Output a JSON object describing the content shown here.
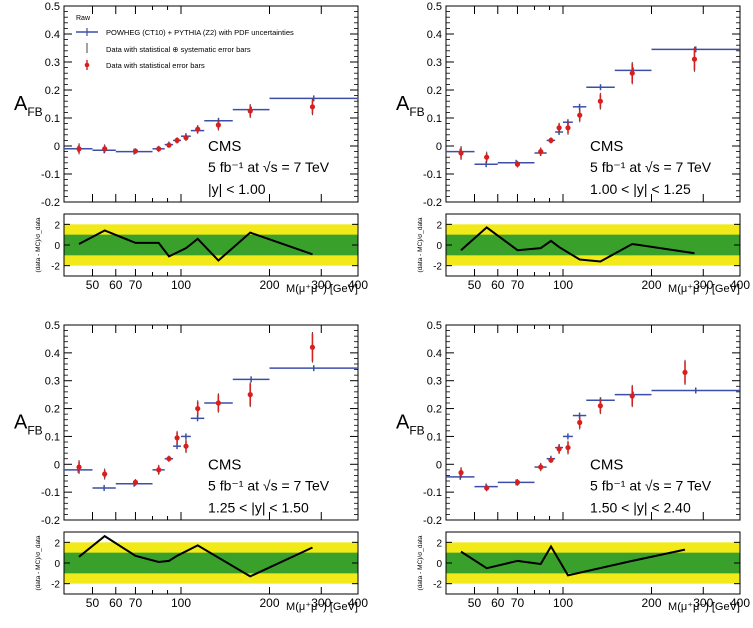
{
  "colors": {
    "mc": "#3b4fa8",
    "data": "#d62020",
    "band_inner": "#3aa02c",
    "band_outer": "#f2ea18",
    "ratio_line": "#000000"
  },
  "legend": {
    "title": "Raw",
    "mc": "POWHEG (CT10) + PYTHIA (Z2) with PDF uncertainties",
    "data_syst": "Data with statistical ⊕ systematic error bars",
    "data_stat": "Data with statistical error bars"
  },
  "chart_data": [
    {
      "type": "scatter",
      "panel": "top-left",
      "ylabel": "A",
      "ylabel_sub": "FB",
      "xlabel": "M(μ⁺μ⁻) [GeV]",
      "ratio_ylabel": "(data - MC)/σ_data",
      "xscale": "log",
      "xlim": [
        40,
        400
      ],
      "ylim": [
        -0.2,
        0.5
      ],
      "ratio_ylim": [
        -3,
        3
      ],
      "xticks": [
        50,
        60,
        70,
        100,
        200,
        300,
        400
      ],
      "yticks": [
        -0.2,
        -0.1,
        0,
        0.1,
        0.2,
        0.3,
        0.4,
        0.5
      ],
      "ratio_yticks": [
        -2,
        0,
        2
      ],
      "annotation": {
        "experiment": "CMS",
        "lumi": "5 fb⁻¹ at √s = 7 TeV",
        "cut": "|y| < 1.00"
      },
      "show_legend": true,
      "mc": [
        {
          "lo": 40,
          "hi": 50,
          "y": -0.01
        },
        {
          "lo": 50,
          "hi": 60,
          "y": -0.015
        },
        {
          "lo": 60,
          "hi": 80,
          "y": -0.02
        },
        {
          "lo": 80,
          "hi": 88,
          "y": -0.01
        },
        {
          "lo": 88,
          "hi": 94,
          "y": 0.005
        },
        {
          "lo": 94,
          "hi": 100,
          "y": 0.02
        },
        {
          "lo": 100,
          "hi": 108,
          "y": 0.035
        },
        {
          "lo": 108,
          "hi": 120,
          "y": 0.055
        },
        {
          "lo": 120,
          "hi": 150,
          "y": 0.09
        },
        {
          "lo": 150,
          "hi": 200,
          "y": 0.13
        },
        {
          "lo": 200,
          "hi": 400,
          "y": 0.17
        }
      ],
      "data": [
        {
          "x": 45,
          "y": -0.01,
          "stat": 0.015,
          "tot": 0.02
        },
        {
          "x": 55,
          "y": -0.01,
          "stat": 0.012,
          "tot": 0.016
        },
        {
          "x": 70,
          "y": -0.018,
          "stat": 0.008,
          "tot": 0.01
        },
        {
          "x": 84,
          "y": -0.01,
          "stat": 0.006,
          "tot": 0.008
        },
        {
          "x": 91,
          "y": 0.003,
          "stat": 0.004,
          "tot": 0.005
        },
        {
          "x": 97,
          "y": 0.02,
          "stat": 0.008,
          "tot": 0.01
        },
        {
          "x": 104,
          "y": 0.03,
          "stat": 0.01,
          "tot": 0.012
        },
        {
          "x": 114,
          "y": 0.06,
          "stat": 0.012,
          "tot": 0.015
        },
        {
          "x": 134,
          "y": 0.075,
          "stat": 0.015,
          "tot": 0.02
        },
        {
          "x": 172,
          "y": 0.125,
          "stat": 0.02,
          "tot": 0.025
        },
        {
          "x": 280,
          "y": 0.14,
          "stat": 0.025,
          "tot": 0.03
        }
      ],
      "ratio": [
        {
          "x": 45,
          "y": 0.1
        },
        {
          "x": 55,
          "y": 1.4
        },
        {
          "x": 70,
          "y": 0.2
        },
        {
          "x": 84,
          "y": 0.2
        },
        {
          "x": 91,
          "y": -1.1
        },
        {
          "x": 104,
          "y": -0.3
        },
        {
          "x": 114,
          "y": 0.6
        },
        {
          "x": 134,
          "y": -1.5
        },
        {
          "x": 172,
          "y": 1.2
        },
        {
          "x": 280,
          "y": -0.9
        }
      ]
    },
    {
      "type": "scatter",
      "panel": "top-right",
      "ylabel": "A",
      "ylabel_sub": "FB",
      "xlabel": "M(μ⁺μ⁻) [GeV]",
      "ratio_ylabel": "(data - MC)/σ_data",
      "xscale": "log",
      "xlim": [
        40,
        400
      ],
      "ylim": [
        -0.2,
        0.5
      ],
      "ratio_ylim": [
        -3,
        3
      ],
      "xticks": [
        50,
        60,
        70,
        100,
        200,
        300,
        400
      ],
      "yticks": [
        -0.2,
        -0.1,
        0,
        0.1,
        0.2,
        0.3,
        0.4,
        0.5
      ],
      "ratio_yticks": [
        -2,
        0,
        2
      ],
      "annotation": {
        "experiment": "CMS",
        "lumi": "5 fb⁻¹ at √s = 7 TeV",
        "cut": "1.00 < |y| < 1.25"
      },
      "show_legend": false,
      "mc": [
        {
          "lo": 40,
          "hi": 50,
          "y": -0.02
        },
        {
          "lo": 50,
          "hi": 60,
          "y": -0.065
        },
        {
          "lo": 60,
          "hi": 80,
          "y": -0.06
        },
        {
          "lo": 80,
          "hi": 88,
          "y": -0.025
        },
        {
          "lo": 88,
          "hi": 94,
          "y": 0.02
        },
        {
          "lo": 94,
          "hi": 100,
          "y": 0.05
        },
        {
          "lo": 100,
          "hi": 108,
          "y": 0.085
        },
        {
          "lo": 108,
          "hi": 120,
          "y": 0.14
        },
        {
          "lo": 120,
          "hi": 150,
          "y": 0.21
        },
        {
          "lo": 150,
          "hi": 200,
          "y": 0.27
        },
        {
          "lo": 200,
          "hi": 400,
          "y": 0.345
        }
      ],
      "data": [
        {
          "x": 45,
          "y": -0.025,
          "stat": 0.02,
          "tot": 0.025
        },
        {
          "x": 55,
          "y": -0.04,
          "stat": 0.015,
          "tot": 0.02
        },
        {
          "x": 70,
          "y": -0.065,
          "stat": 0.01,
          "tot": 0.012
        },
        {
          "x": 84,
          "y": -0.02,
          "stat": 0.012,
          "tot": 0.015
        },
        {
          "x": 91,
          "y": 0.02,
          "stat": 0.006,
          "tot": 0.008
        },
        {
          "x": 97,
          "y": 0.065,
          "stat": 0.015,
          "tot": 0.018
        },
        {
          "x": 104,
          "y": 0.065,
          "stat": 0.02,
          "tot": 0.025
        },
        {
          "x": 114,
          "y": 0.11,
          "stat": 0.02,
          "tot": 0.025
        },
        {
          "x": 134,
          "y": 0.16,
          "stat": 0.025,
          "tot": 0.03
        },
        {
          "x": 172,
          "y": 0.26,
          "stat": 0.035,
          "tot": 0.04
        },
        {
          "x": 280,
          "y": 0.31,
          "stat": 0.04,
          "tot": 0.045
        }
      ],
      "ratio": [
        {
          "x": 45,
          "y": -0.5
        },
        {
          "x": 55,
          "y": 1.7
        },
        {
          "x": 70,
          "y": -0.5
        },
        {
          "x": 84,
          "y": -0.3
        },
        {
          "x": 91,
          "y": 0.4
        },
        {
          "x": 97,
          "y": -0.2
        },
        {
          "x": 114,
          "y": -1.4
        },
        {
          "x": 134,
          "y": -1.6
        },
        {
          "x": 172,
          "y": 0.1
        },
        {
          "x": 280,
          "y": -0.8
        }
      ]
    },
    {
      "type": "scatter",
      "panel": "bottom-left",
      "ylabel": "A",
      "ylabel_sub": "FB",
      "xlabel": "M(μ⁺μ⁻) [GeV]",
      "ratio_ylabel": "(data - MC)/σ_data",
      "xscale": "log",
      "xlim": [
        40,
        400
      ],
      "ylim": [
        -0.2,
        0.5
      ],
      "ratio_ylim": [
        -3,
        3
      ],
      "xticks": [
        50,
        60,
        70,
        100,
        200,
        300,
        400
      ],
      "yticks": [
        -0.2,
        -0.1,
        0,
        0.1,
        0.2,
        0.3,
        0.4,
        0.5
      ],
      "ratio_yticks": [
        -2,
        0,
        2
      ],
      "annotation": {
        "experiment": "CMS",
        "lumi": "5 fb⁻¹ at √s = 7 TeV",
        "cut": "1.25 < |y| < 1.50"
      },
      "show_legend": false,
      "mc": [
        {
          "lo": 40,
          "hi": 50,
          "y": -0.02
        },
        {
          "lo": 50,
          "hi": 60,
          "y": -0.085
        },
        {
          "lo": 60,
          "hi": 80,
          "y": -0.07
        },
        {
          "lo": 80,
          "hi": 88,
          "y": -0.02
        },
        {
          "lo": 88,
          "hi": 94,
          "y": 0.02
        },
        {
          "lo": 94,
          "hi": 100,
          "y": 0.065
        },
        {
          "lo": 100,
          "hi": 108,
          "y": 0.1
        },
        {
          "lo": 108,
          "hi": 120,
          "y": 0.165
        },
        {
          "lo": 120,
          "hi": 150,
          "y": 0.22
        },
        {
          "lo": 150,
          "hi": 200,
          "y": 0.305
        },
        {
          "lo": 200,
          "hi": 400,
          "y": 0.345
        }
      ],
      "data": [
        {
          "x": 45,
          "y": -0.01,
          "stat": 0.02,
          "tot": 0.025
        },
        {
          "x": 55,
          "y": -0.035,
          "stat": 0.015,
          "tot": 0.02
        },
        {
          "x": 70,
          "y": -0.065,
          "stat": 0.01,
          "tot": 0.012
        },
        {
          "x": 84,
          "y": -0.02,
          "stat": 0.015,
          "tot": 0.018
        },
        {
          "x": 91,
          "y": 0.02,
          "stat": 0.008,
          "tot": 0.01
        },
        {
          "x": 97,
          "y": 0.095,
          "stat": 0.02,
          "tot": 0.025
        },
        {
          "x": 104,
          "y": 0.065,
          "stat": 0.02,
          "tot": 0.025
        },
        {
          "x": 114,
          "y": 0.2,
          "stat": 0.025,
          "tot": 0.03
        },
        {
          "x": 134,
          "y": 0.22,
          "stat": 0.03,
          "tot": 0.035
        },
        {
          "x": 172,
          "y": 0.25,
          "stat": 0.04,
          "tot": 0.045
        },
        {
          "x": 280,
          "y": 0.42,
          "stat": 0.05,
          "tot": 0.055
        }
      ],
      "ratio": [
        {
          "x": 45,
          "y": 0.6
        },
        {
          "x": 55,
          "y": 2.6
        },
        {
          "x": 70,
          "y": 0.7
        },
        {
          "x": 84,
          "y": 0.1
        },
        {
          "x": 91,
          "y": 0.2
        },
        {
          "x": 97,
          "y": 0.7
        },
        {
          "x": 114,
          "y": 1.7
        },
        {
          "x": 172,
          "y": -1.3
        },
        {
          "x": 280,
          "y": 1.5
        }
      ]
    },
    {
      "type": "scatter",
      "panel": "bottom-right",
      "ylabel": "A",
      "ylabel_sub": "FB",
      "xlabel": "M(μ⁺μ⁻) [GeV]",
      "ratio_ylabel": "(data - MC)/σ_data",
      "xscale": "log",
      "xlim": [
        40,
        400
      ],
      "ylim": [
        -0.2,
        0.5
      ],
      "ratio_ylim": [
        -3,
        3
      ],
      "xticks": [
        50,
        60,
        70,
        100,
        200,
        300,
        400
      ],
      "yticks": [
        -0.2,
        -0.1,
        0,
        0.1,
        0.2,
        0.3,
        0.4,
        0.5
      ],
      "ratio_yticks": [
        -2,
        0,
        2
      ],
      "annotation": {
        "experiment": "CMS",
        "lumi": "5 fb⁻¹ at √s = 7 TeV",
        "cut": "1.50 < |y| < 2.40"
      },
      "show_legend": false,
      "mc": [
        {
          "lo": 40,
          "hi": 50,
          "y": -0.045
        },
        {
          "lo": 50,
          "hi": 60,
          "y": -0.08
        },
        {
          "lo": 60,
          "hi": 80,
          "y": -0.065
        },
        {
          "lo": 80,
          "hi": 88,
          "y": -0.01
        },
        {
          "lo": 88,
          "hi": 94,
          "y": 0.02
        },
        {
          "lo": 94,
          "hi": 100,
          "y": 0.06
        },
        {
          "lo": 100,
          "hi": 108,
          "y": 0.1
        },
        {
          "lo": 108,
          "hi": 120,
          "y": 0.175
        },
        {
          "lo": 120,
          "hi": 150,
          "y": 0.23
        },
        {
          "lo": 150,
          "hi": 200,
          "y": 0.25
        },
        {
          "lo": 200,
          "hi": 400,
          "y": 0.265
        }
      ],
      "data": [
        {
          "x": 45,
          "y": -0.03,
          "stat": 0.015,
          "tot": 0.02
        },
        {
          "x": 55,
          "y": -0.085,
          "stat": 0.01,
          "tot": 0.012
        },
        {
          "x": 70,
          "y": -0.065,
          "stat": 0.01,
          "tot": 0.012
        },
        {
          "x": 84,
          "y": -0.01,
          "stat": 0.012,
          "tot": 0.015
        },
        {
          "x": 91,
          "y": 0.015,
          "stat": 0.008,
          "tot": 0.01
        },
        {
          "x": 97,
          "y": 0.055,
          "stat": 0.015,
          "tot": 0.018
        },
        {
          "x": 104,
          "y": 0.06,
          "stat": 0.02,
          "tot": 0.025
        },
        {
          "x": 114,
          "y": 0.15,
          "stat": 0.02,
          "tot": 0.025
        },
        {
          "x": 134,
          "y": 0.21,
          "stat": 0.025,
          "tot": 0.03
        },
        {
          "x": 172,
          "y": 0.245,
          "stat": 0.035,
          "tot": 0.04
        },
        {
          "x": 260,
          "y": 0.33,
          "stat": 0.04,
          "tot": 0.045
        }
      ],
      "ratio": [
        {
          "x": 45,
          "y": 1.1
        },
        {
          "x": 55,
          "y": -0.5
        },
        {
          "x": 70,
          "y": 0.2
        },
        {
          "x": 84,
          "y": -0.1
        },
        {
          "x": 91,
          "y": 1.6
        },
        {
          "x": 104,
          "y": -1.2
        },
        {
          "x": 172,
          "y": 0.2
        },
        {
          "x": 260,
          "y": 1.3
        }
      ]
    }
  ]
}
